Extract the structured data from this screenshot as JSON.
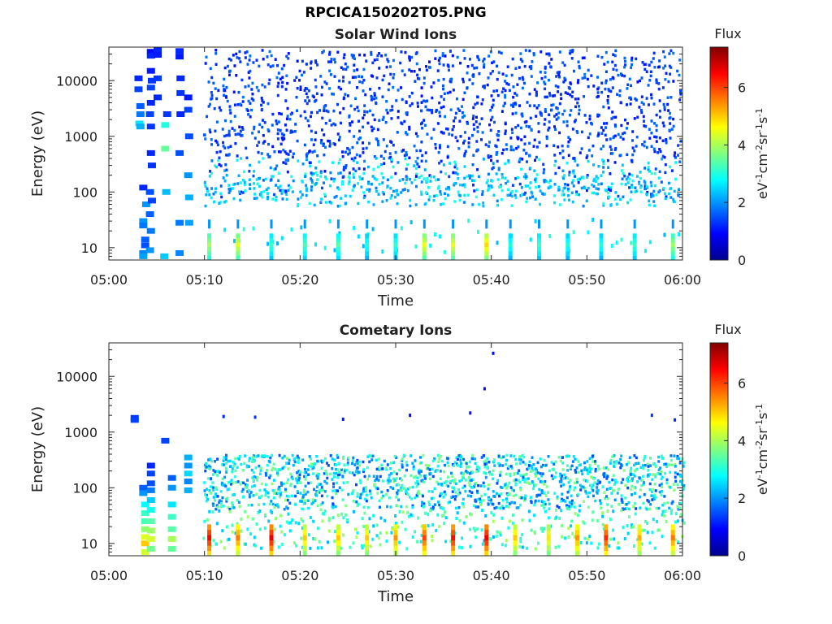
{
  "figure": {
    "title": "RPCICA150202T05.PNG"
  },
  "chart_data": [
    {
      "type": "heatmap",
      "title": "Solar Wind Ions",
      "xlabel": "Time",
      "ylabel": "Energy (eV)",
      "x_ticks": [
        "05:00",
        "05:10",
        "05:20",
        "05:30",
        "05:40",
        "05:50",
        "06:00"
      ],
      "xlim": [
        "05:00",
        "06:00"
      ],
      "y_scale": "log",
      "y_ticks": [
        10,
        100,
        1000,
        10000
      ],
      "y_tick_labels": [
        "10",
        "100",
        "1000",
        "10000"
      ],
      "ylim": [
        6,
        40000
      ],
      "colorbar": {
        "title": "Flux",
        "unit": "eV-1cm-2sr-1s-1",
        "ticks": [
          0,
          2,
          4,
          6
        ],
        "range": [
          0,
          7.4
        ],
        "colormap": "jet"
      },
      "early_blocks": [
        {
          "t": 3.1,
          "e": 11000,
          "v": 1.2
        },
        {
          "t": 3.1,
          "e": 7000,
          "v": 1.4
        },
        {
          "t": 3.3,
          "e": 3500,
          "v": 1.6
        },
        {
          "t": 3.3,
          "e": 2500,
          "v": 1.8
        },
        {
          "t": 3.2,
          "e": 1700,
          "v": 2.6
        },
        {
          "t": 3.3,
          "e": 1500,
          "v": 2.2
        },
        {
          "t": 3.6,
          "e": 120,
          "v": 1.2
        },
        {
          "t": 3.9,
          "e": 60,
          "v": 2.0
        },
        {
          "t": 3.6,
          "e": 30,
          "v": 2.0
        },
        {
          "t": 3.6,
          "e": 25,
          "v": 1.8
        },
        {
          "t": 3.8,
          "e": 14,
          "v": 1.6
        },
        {
          "t": 3.8,
          "e": 11,
          "v": 1.5
        },
        {
          "t": 3.6,
          "e": 8,
          "v": 1.9
        },
        {
          "t": 3.6,
          "e": 7,
          "v": 2.1
        },
        {
          "t": 4.4,
          "e": 33000,
          "v": 1.0
        },
        {
          "t": 4.4,
          "e": 28000,
          "v": 1.2
        },
        {
          "t": 4.4,
          "e": 15000,
          "v": 1.1
        },
        {
          "t": 4.5,
          "e": 10000,
          "v": 1.3
        },
        {
          "t": 4.4,
          "e": 7500,
          "v": 1.4
        },
        {
          "t": 4.4,
          "e": 4000,
          "v": 1.2
        },
        {
          "t": 4.3,
          "e": 2500,
          "v": 1.4
        },
        {
          "t": 4.4,
          "e": 1500,
          "v": 1.3
        },
        {
          "t": 4.4,
          "e": 500,
          "v": 1.2
        },
        {
          "t": 4.5,
          "e": 300,
          "v": 1.3
        },
        {
          "t": 4.3,
          "e": 100,
          "v": 1.5
        },
        {
          "t": 4.5,
          "e": 70,
          "v": 1.4
        },
        {
          "t": 4.3,
          "e": 40,
          "v": 1.6
        },
        {
          "t": 4.4,
          "e": 20,
          "v": 1.8
        },
        {
          "t": 4.3,
          "e": 9,
          "v": 2.0
        },
        {
          "t": 5.1,
          "e": 35000,
          "v": 1.2
        },
        {
          "t": 5.1,
          "e": 29000,
          "v": 1.1
        },
        {
          "t": 5.1,
          "e": 11000,
          "v": 1.3
        },
        {
          "t": 5.1,
          "e": 5000,
          "v": 1.2
        },
        {
          "t": 6.1,
          "e": 2500,
          "v": 1.3
        },
        {
          "t": 5.9,
          "e": 1600,
          "v": 3.0
        },
        {
          "t": 5.9,
          "e": 600,
          "v": 3.5
        },
        {
          "t": 6.0,
          "e": 100,
          "v": 2.3
        },
        {
          "t": 5.8,
          "e": 7,
          "v": 2.4
        },
        {
          "t": 7.4,
          "e": 34000,
          "v": 1.2
        },
        {
          "t": 7.4,
          "e": 27000,
          "v": 1.1
        },
        {
          "t": 7.5,
          "e": 11000,
          "v": 1.2
        },
        {
          "t": 7.5,
          "e": 6000,
          "v": 1.3
        },
        {
          "t": 7.5,
          "e": 2500,
          "v": 1.2
        },
        {
          "t": 7.4,
          "e": 500,
          "v": 1.5
        },
        {
          "t": 7.4,
          "e": 28,
          "v": 1.8
        },
        {
          "t": 7.4,
          "e": 8,
          "v": 1.9
        },
        {
          "t": 8.3,
          "e": 5000,
          "v": 1.1
        },
        {
          "t": 8.3,
          "e": 3000,
          "v": 1.4
        },
        {
          "t": 8.4,
          "e": 1000,
          "v": 1.5
        },
        {
          "t": 8.3,
          "e": 200,
          "v": 2.0
        },
        {
          "t": 8.4,
          "e": 80,
          "v": 2.2
        },
        {
          "t": 8.4,
          "e": 28,
          "v": 2.1
        }
      ],
      "bursts": [
        {
          "t": 10.5,
          "v": 4.0
        },
        {
          "t": 13.5,
          "v": 4.4
        },
        {
          "t": 17.0,
          "v": 3.2
        },
        {
          "t": 20.5,
          "v": 3.3
        },
        {
          "t": 24.0,
          "v": 3.4
        },
        {
          "t": 27.0,
          "v": 3.0
        },
        {
          "t": 30.0,
          "v": 3.1
        },
        {
          "t": 33.0,
          "v": 4.5
        },
        {
          "t": 36.0,
          "v": 4.5
        },
        {
          "t": 39.5,
          "v": 4.9
        },
        {
          "t": 42.0,
          "v": 3.0
        },
        {
          "t": 45.0,
          "v": 3.2
        },
        {
          "t": 48.0,
          "v": 3.0
        },
        {
          "t": 51.5,
          "v": 3.0
        },
        {
          "t": 55.0,
          "v": 3.2
        },
        {
          "t": 59.0,
          "v": 3.9
        }
      ]
    },
    {
      "type": "heatmap",
      "title": "Cometary Ions",
      "xlabel": "Time",
      "ylabel": "Energy (eV)",
      "x_ticks": [
        "05:00",
        "05:10",
        "05:20",
        "05:30",
        "05:40",
        "05:50",
        "06:00"
      ],
      "xlim": [
        "05:00",
        "06:00"
      ],
      "y_scale": "log",
      "y_ticks": [
        10,
        100,
        1000,
        10000
      ],
      "y_tick_labels": [
        "10",
        "100",
        "1000",
        "10000"
      ],
      "ylim": [
        6,
        40000
      ],
      "colorbar": {
        "title": "Flux",
        "unit": "eV-1cm-2sr-1s-1",
        "ticks": [
          0,
          2,
          4,
          6
        ],
        "range": [
          0,
          7.4
        ],
        "colormap": "jet"
      },
      "early_blocks": [
        {
          "t": 2.7,
          "e": 1800,
          "v": 1.3
        },
        {
          "t": 2.7,
          "e": 1650,
          "v": 1.4
        },
        {
          "t": 3.6,
          "e": 100,
          "v": 1.6
        },
        {
          "t": 3.6,
          "e": 80,
          "v": 2.0
        },
        {
          "t": 3.8,
          "e": 50,
          "v": 2.8
        },
        {
          "t": 3.8,
          "e": 35,
          "v": 3.2
        },
        {
          "t": 3.8,
          "e": 25,
          "v": 3.3
        },
        {
          "t": 3.8,
          "e": 18,
          "v": 3.8
        },
        {
          "t": 3.8,
          "e": 13,
          "v": 4.4
        },
        {
          "t": 3.8,
          "e": 10,
          "v": 5.0
        },
        {
          "t": 3.8,
          "e": 7,
          "v": 4.3
        },
        {
          "t": 4.4,
          "e": 250,
          "v": 1.2
        },
        {
          "t": 4.4,
          "e": 180,
          "v": 1.4
        },
        {
          "t": 4.4,
          "e": 120,
          "v": 1.5
        },
        {
          "t": 4.4,
          "e": 90,
          "v": 1.8
        },
        {
          "t": 4.4,
          "e": 60,
          "v": 2.4
        },
        {
          "t": 4.4,
          "e": 40,
          "v": 2.9
        },
        {
          "t": 4.4,
          "e": 25,
          "v": 3.4
        },
        {
          "t": 4.4,
          "e": 17,
          "v": 3.9
        },
        {
          "t": 4.4,
          "e": 12,
          "v": 4.3
        },
        {
          "t": 4.4,
          "e": 8,
          "v": 3.6
        },
        {
          "t": 5.9,
          "e": 700,
          "v": 1.4
        },
        {
          "t": 6.6,
          "e": 150,
          "v": 1.6
        },
        {
          "t": 6.6,
          "e": 100,
          "v": 2.0
        },
        {
          "t": 6.6,
          "e": 50,
          "v": 2.6
        },
        {
          "t": 6.6,
          "e": 30,
          "v": 3.2
        },
        {
          "t": 6.6,
          "e": 18,
          "v": 3.4
        },
        {
          "t": 6.6,
          "e": 12,
          "v": 4.0
        },
        {
          "t": 6.6,
          "e": 8,
          "v": 3.5
        },
        {
          "t": 8.3,
          "e": 350,
          "v": 2.2
        },
        {
          "t": 8.3,
          "e": 250,
          "v": 2.0
        },
        {
          "t": 8.3,
          "e": 180,
          "v": 2.5
        },
        {
          "t": 8.3,
          "e": 130,
          "v": 1.9
        },
        {
          "t": 8.3,
          "e": 90,
          "v": 2.2
        }
      ],
      "sparse_points": [
        {
          "t": 12.0,
          "e": 1900,
          "v": 1.2
        },
        {
          "t": 15.3,
          "e": 1850,
          "v": 1.3
        },
        {
          "t": 24.5,
          "e": 1700,
          "v": 1.1
        },
        {
          "t": 31.5,
          "e": 2000,
          "v": 1.0
        },
        {
          "t": 37.8,
          "e": 2200,
          "v": 1.1
        },
        {
          "t": 39.3,
          "e": 6000,
          "v": 1.0
        },
        {
          "t": 40.2,
          "e": 26000,
          "v": 1.0
        },
        {
          "t": 56.8,
          "e": 2000,
          "v": 1.3
        },
        {
          "t": 59.2,
          "e": 1650,
          "v": 1.2
        }
      ],
      "bursts": [
        {
          "t": 10.5,
          "v": 6.5
        },
        {
          "t": 13.5,
          "v": 5.6
        },
        {
          "t": 17.0,
          "v": 6.6
        },
        {
          "t": 20.5,
          "v": 5.0
        },
        {
          "t": 24.0,
          "v": 5.0
        },
        {
          "t": 27.0,
          "v": 5.0
        },
        {
          "t": 30.0,
          "v": 5.4
        },
        {
          "t": 33.0,
          "v": 6.0
        },
        {
          "t": 36.0,
          "v": 6.4
        },
        {
          "t": 39.5,
          "v": 6.6
        },
        {
          "t": 42.5,
          "v": 5.0
        },
        {
          "t": 46.0,
          "v": 4.8
        },
        {
          "t": 49.0,
          "v": 5.4
        },
        {
          "t": 52.0,
          "v": 6.2
        },
        {
          "t": 55.5,
          "v": 5.2
        },
        {
          "t": 59.0,
          "v": 5.6
        }
      ]
    }
  ]
}
